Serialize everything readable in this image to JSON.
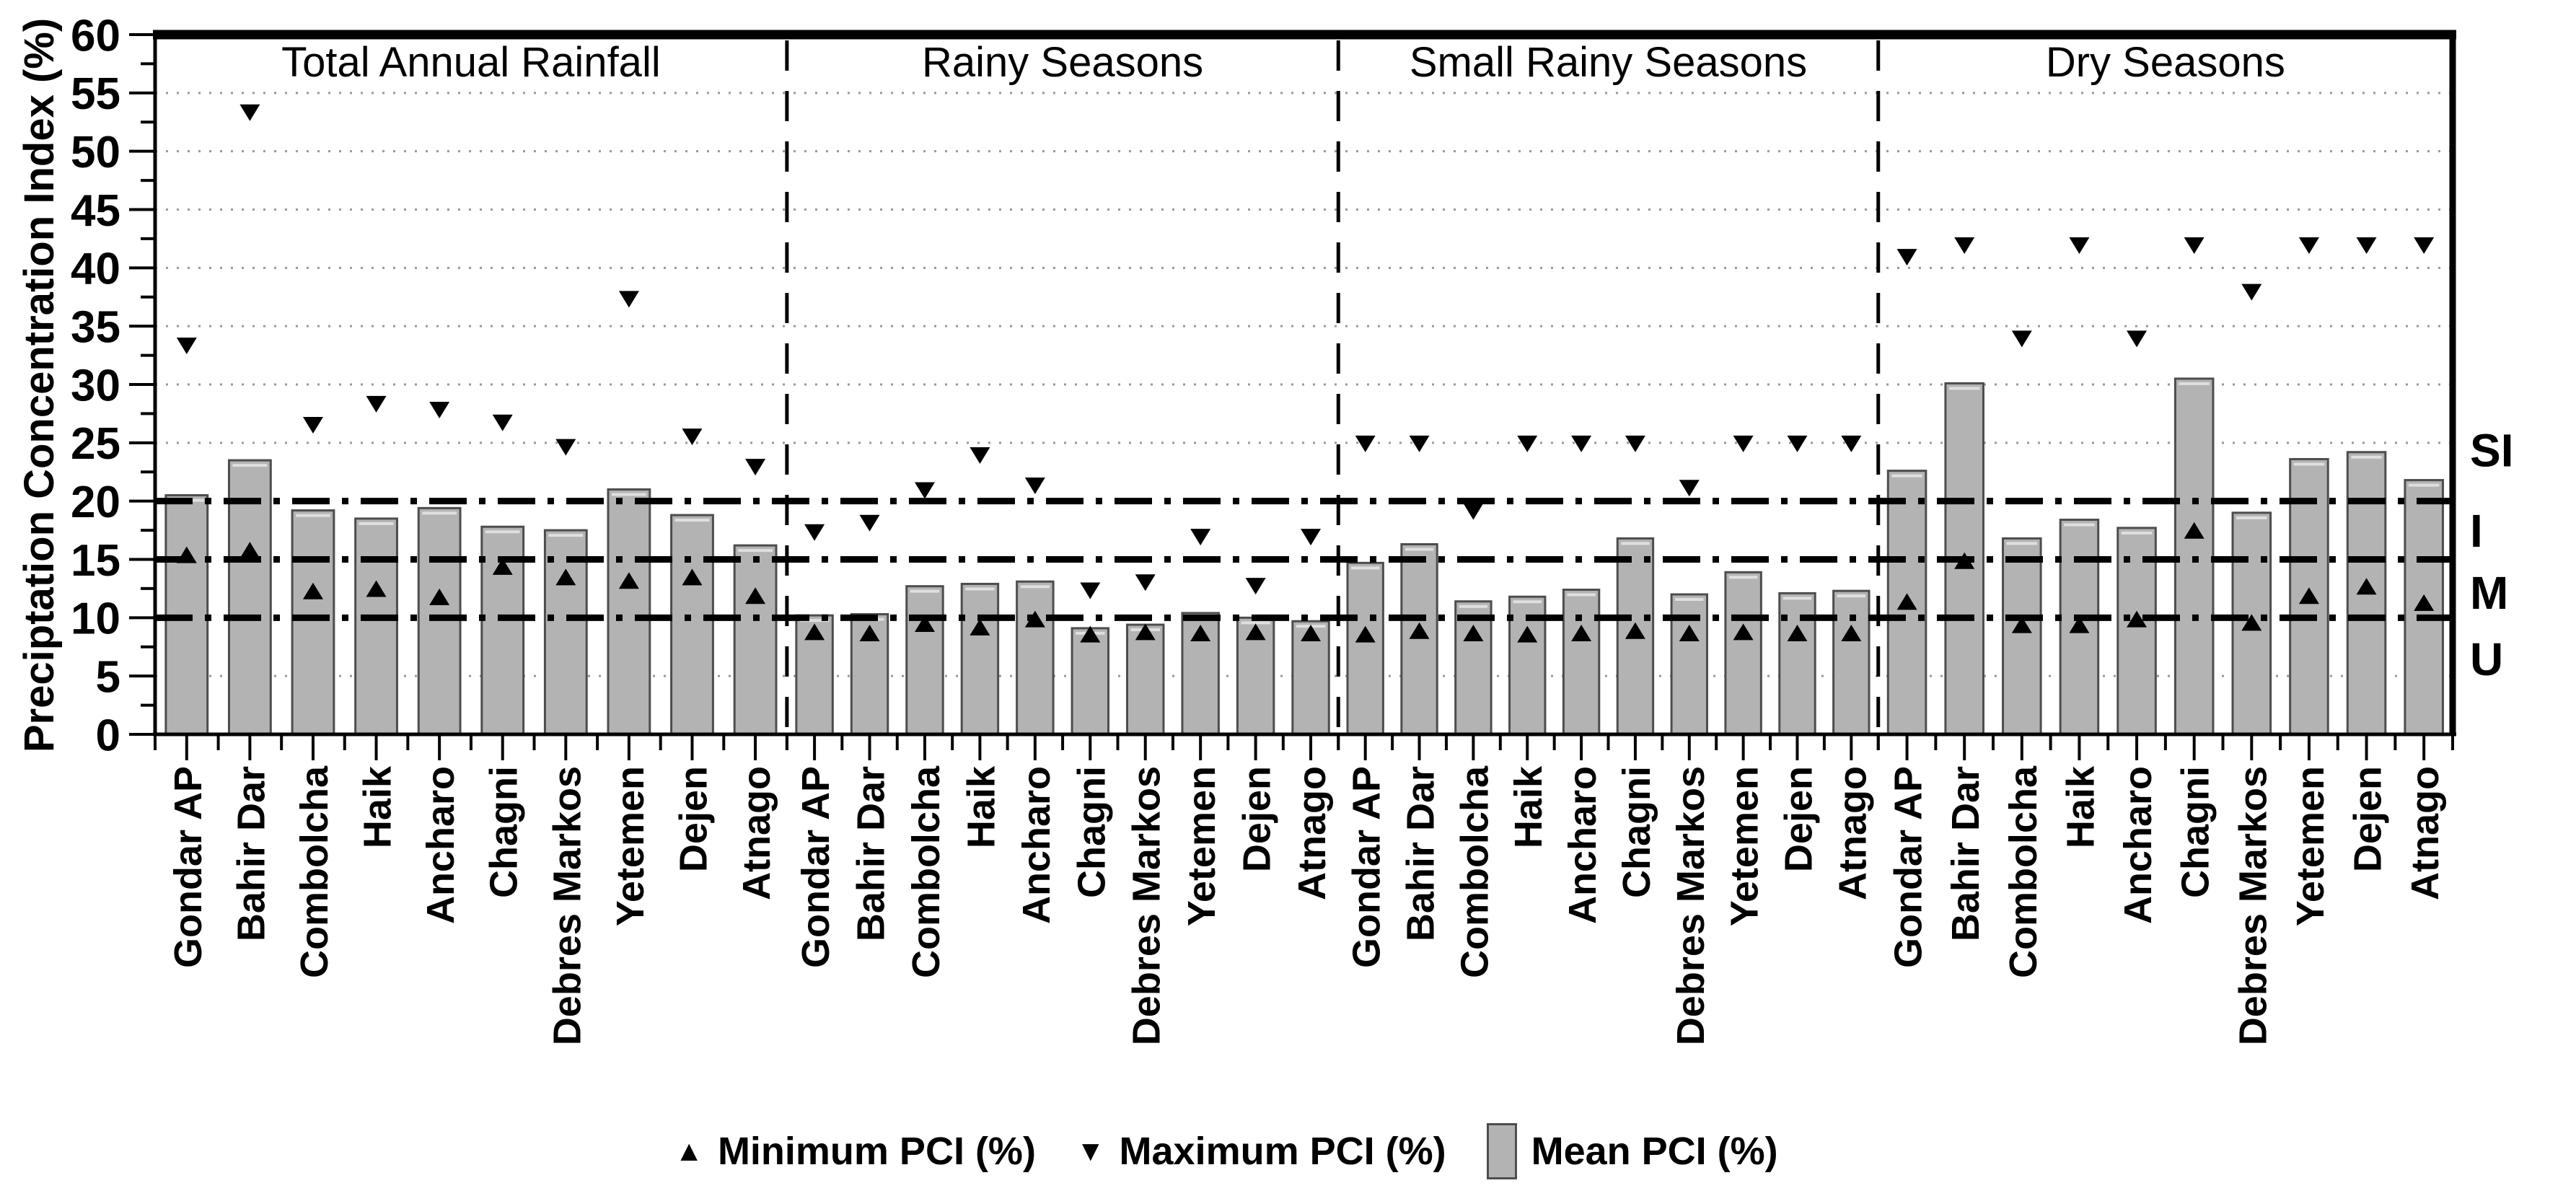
{
  "figure": {
    "y_axis_title": "Preciptation Concentration Index (%)",
    "y_ticks": [
      "0",
      "5",
      "10",
      "15",
      "20",
      "25",
      "30",
      "35",
      "40",
      "45",
      "50",
      "55",
      "60"
    ],
    "zone_labels": [
      {
        "text": "SI",
        "value": 24.4
      },
      {
        "text": "I",
        "value": 17.5
      },
      {
        "text": "M",
        "value": 12.2
      },
      {
        "text": "U",
        "value": 6.5
      }
    ],
    "legend": {
      "min": {
        "symbol": "▲",
        "label": "Minimum PCI (%)"
      },
      "max": {
        "symbol": "▼",
        "label": "Maximum PCI (%)"
      },
      "mean": {
        "swatch_color": "#b3b3b3",
        "label": "Mean PCI (%)"
      }
    },
    "colors": {
      "background": "#ffffff",
      "bar_fill": "#b3b3b3",
      "bar_border": "#4d4d4d",
      "bar_top_highlight": "#dfdfdf",
      "marker": "#000000",
      "dotted_grid": "#999999",
      "dash_dot_line": "#000000",
      "frame": "#000000"
    }
  },
  "chart_data": {
    "type": "bar",
    "title": "",
    "xlabel": "",
    "ylabel": "Preciptation Concentration Index (%)",
    "ylim": [
      0,
      60
    ],
    "y_major_step": 5,
    "y_minor_step": 2.5,
    "grid": "horizontal",
    "legend_position": "bottom",
    "reference_lines": {
      "dash_dot": [
        10,
        15,
        20
      ],
      "dotted": [
        5,
        25,
        30,
        35,
        40,
        45,
        50,
        55
      ]
    },
    "panel_separator_style": "vertical-dashed",
    "panels": [
      {
        "title": "Total Annual Rainfall",
        "categories": [
          "Gondar AP",
          "Bahir Dar",
          "Combolcha",
          "Haik",
          "Ancharo",
          "Chagni",
          "Debres Markos",
          "Yetemen",
          "Dejen",
          "Atnago"
        ],
        "series": [
          {
            "name": "Mean PCI (%)",
            "marker": "bar",
            "values": [
              20.5,
              23.5,
              19.2,
              18.5,
              19.4,
              17.8,
              17.5,
              21.0,
              18.8,
              16.2
            ]
          },
          {
            "name": "Minimum PCI (%)",
            "marker": "triangle-up",
            "values": [
              15.3,
              15.7,
              12.2,
              12.4,
              11.7,
              14.3,
              13.4,
              13.1,
              13.4,
              11.8
            ]
          },
          {
            "name": "Maximum PCI (%)",
            "marker": "triangle-down",
            "values": [
              33.4,
              53.4,
              26.6,
              28.4,
              27.9,
              26.8,
              24.7,
              37.4,
              25.6,
              23.0
            ]
          }
        ]
      },
      {
        "title": "Rainy Seasons",
        "categories": [
          "Gondar AP",
          "Bahir Dar",
          "Combolcha",
          "Haik",
          "Ancharo",
          "Chagni",
          "Debres Markos",
          "Yetemen",
          "Dejen",
          "Atnago"
        ],
        "series": [
          {
            "name": "Mean PCI (%)",
            "marker": "bar",
            "values": [
              10.2,
              10.3,
              12.7,
              12.9,
              13.1,
              9.1,
              9.4,
              10.4,
              10.0,
              9.7
            ]
          },
          {
            "name": "Minimum PCI (%)",
            "marker": "triangle-up",
            "values": [
              8.7,
              8.6,
              9.4,
              9.1,
              9.8,
              8.5,
              8.7,
              8.6,
              8.7,
              8.6
            ]
          },
          {
            "name": "Maximum PCI (%)",
            "marker": "triangle-down",
            "values": [
              17.4,
              18.2,
              21.0,
              24.0,
              21.4,
              12.4,
              13.1,
              17.0,
              12.8,
              17.0
            ]
          }
        ]
      },
      {
        "title": "Small Rainy Seasons",
        "categories": [
          "Gondar AP",
          "Bahir Dar",
          "Combolcha",
          "Haik",
          "Ancharo",
          "Chagni",
          "Debres Markos",
          "Yetemen",
          "Dejen",
          "Atnago"
        ],
        "series": [
          {
            "name": "Mean PCI (%)",
            "marker": "bar",
            "values": [
              14.7,
              16.3,
              11.4,
              11.8,
              12.4,
              16.8,
              12.0,
              13.9,
              12.1,
              12.3
            ]
          },
          {
            "name": "Minimum PCI (%)",
            "marker": "triangle-up",
            "values": [
              8.5,
              8.8,
              8.6,
              8.5,
              8.6,
              8.8,
              8.6,
              8.7,
              8.6,
              8.6
            ]
          },
          {
            "name": "Maximum PCI (%)",
            "marker": "triangle-down",
            "values": [
              25.0,
              25.0,
              19.2,
              25.0,
              25.0,
              25.0,
              21.2,
              25.0,
              25.0,
              25.0
            ]
          }
        ]
      },
      {
        "title": "Dry Seasons",
        "categories": [
          "Gondar AP",
          "Bahir Dar",
          "Combolcha",
          "Haik",
          "Ancharo",
          "Chagni",
          "Debres Markos",
          "Yetemen",
          "Dejen",
          "Atnago"
        ],
        "series": [
          {
            "name": "Mean PCI (%)",
            "marker": "bar",
            "values": [
              22.6,
              30.1,
              16.8,
              18.4,
              17.7,
              30.5,
              19.0,
              23.6,
              24.2,
              21.8
            ]
          },
          {
            "name": "Minimum PCI (%)",
            "marker": "triangle-up",
            "values": [
              11.3,
              14.8,
              9.3,
              9.3,
              9.8,
              17.4,
              9.5,
              11.8,
              12.6,
              11.2
            ]
          },
          {
            "name": "Maximum PCI (%)",
            "marker": "triangle-down",
            "values": [
              41.0,
              42.0,
              34.0,
              42.0,
              34.0,
              42.0,
              38.0,
              42.0,
              42.0,
              42.0
            ]
          }
        ]
      }
    ]
  }
}
